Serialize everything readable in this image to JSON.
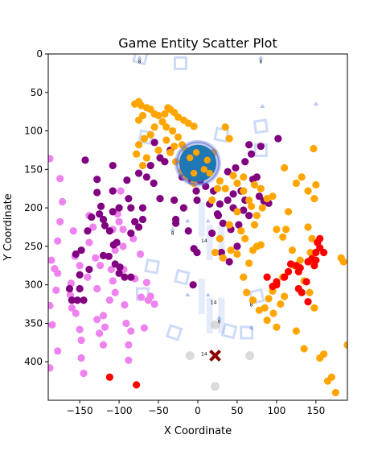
{
  "chart_data": {
    "type": "scatter",
    "title": "Game Entity Scatter Plot",
    "xlabel": "X Coordinate",
    "ylabel": "Y Coordinate",
    "xlim": [
      -190,
      190
    ],
    "ylim": [
      450,
      0
    ],
    "xticks": [
      -150,
      -100,
      -50,
      0,
      50,
      100,
      150
    ],
    "yticks": [
      0,
      50,
      100,
      150,
      200,
      250,
      300,
      350,
      400
    ],
    "grid": false,
    "legend": "none",
    "colors": {
      "violet": "#ee82ee",
      "purple": "#800080",
      "orange": "#ffa500",
      "red": "#ff0000",
      "blue": "#1f77b4",
      "darkred": "#8b0000",
      "gray": "#bbbbbb",
      "wire": "#1f5ae0"
    },
    "series": [
      {
        "color": "violet",
        "points": [
          [
            -188,
            136
          ],
          [
            -175,
            162
          ],
          [
            -172,
            192
          ],
          [
            -175,
            218
          ],
          [
            -178,
            243
          ],
          [
            -186,
            268
          ],
          [
            -182,
            279
          ],
          [
            -178,
            285
          ],
          [
            -180,
            307
          ],
          [
            -188,
            327
          ],
          [
            -185,
            352
          ],
          [
            -178,
            386
          ],
          [
            -188,
            408
          ],
          [
            -158,
            230
          ],
          [
            -156,
            263
          ],
          [
            -161,
            298
          ],
          [
            -162,
            313
          ],
          [
            -155,
            337
          ],
          [
            -150,
            358
          ],
          [
            -148,
            372
          ],
          [
            -145,
            415
          ],
          [
            -148,
            395
          ],
          [
            -138,
            210
          ],
          [
            -133,
            225
          ],
          [
            -130,
            265
          ],
          [
            -128,
            305
          ],
          [
            -128,
            345
          ],
          [
            -125,
            363
          ],
          [
            -120,
            378
          ],
          [
            -118,
            355
          ],
          [
            -112,
            320
          ],
          [
            -108,
            295
          ],
          [
            -105,
            255
          ],
          [
            -108,
            228
          ],
          [
            -102,
            208
          ],
          [
            -98,
            178
          ],
          [
            -95,
            250
          ],
          [
            -94,
            280
          ],
          [
            -93,
            326
          ],
          [
            -91,
            350
          ],
          [
            -88,
            378
          ],
          [
            -88,
            398
          ],
          [
            -85,
            360
          ],
          [
            -82,
            240
          ],
          [
            -80,
            292
          ],
          [
            -73,
            260
          ],
          [
            -72,
            316
          ],
          [
            -68,
            356
          ],
          [
            -65,
            297
          ],
          [
            -63,
            320
          ],
          [
            -60,
            315
          ],
          [
            -55,
            325
          ],
          [
            -100,
            218
          ],
          [
            -110,
            280
          ],
          [
            -120,
            340
          ],
          [
            -140,
            290
          ],
          [
            -160,
            330
          ],
          [
            -150,
            275
          ],
          [
            -95,
            228
          ],
          [
            -105,
            310
          ],
          [
            -124,
            275
          ],
          [
            -138,
            245
          ]
        ]
      },
      {
        "color": "purple",
        "points": [
          [
            -143,
            138
          ],
          [
            -128,
            163
          ],
          [
            -128,
            180
          ],
          [
            -123,
            198
          ],
          [
            -125,
            208
          ],
          [
            -118,
            223
          ],
          [
            -112,
            230
          ],
          [
            -120,
            262
          ],
          [
            -113,
            263
          ],
          [
            -107,
            248
          ],
          [
            -105,
            273
          ],
          [
            -100,
            285
          ],
          [
            -99,
            277
          ],
          [
            -93,
            290
          ],
          [
            -85,
            290
          ],
          [
            -103,
            245
          ],
          [
            -108,
            205
          ],
          [
            -108,
            178
          ],
          [
            -108,
            145
          ],
          [
            -90,
            164
          ],
          [
            -88,
            188
          ],
          [
            -85,
            200
          ],
          [
            -70,
            200
          ],
          [
            -70,
            215
          ],
          [
            -65,
            160
          ],
          [
            -75,
            155
          ],
          [
            -60,
            145
          ],
          [
            -55,
            115
          ],
          [
            -48,
            135
          ],
          [
            -42,
            140
          ],
          [
            -30,
            190
          ],
          [
            -28,
            215
          ],
          [
            -28,
            220
          ],
          [
            -18,
            200
          ],
          [
            -12,
            148
          ],
          [
            -8,
            165
          ],
          [
            -2,
            178
          ],
          [
            -1,
            190
          ],
          [
            -12,
            230
          ],
          [
            -5,
            253
          ],
          [
            -1,
            258
          ],
          [
            -6,
            300
          ],
          [
            3,
            165
          ],
          [
            10,
            172
          ],
          [
            20,
            178
          ],
          [
            25,
            208
          ],
          [
            18,
            233
          ],
          [
            30,
            258
          ],
          [
            40,
            270
          ],
          [
            50,
            250
          ],
          [
            42,
            228
          ],
          [
            26,
            210
          ],
          [
            38,
            190
          ],
          [
            45,
            182
          ],
          [
            38,
            153
          ],
          [
            48,
            148
          ],
          [
            55,
            178
          ],
          [
            60,
            190
          ],
          [
            58,
            203
          ],
          [
            65,
            210
          ],
          [
            70,
            163
          ],
          [
            75,
            160
          ],
          [
            68,
            130
          ],
          [
            65,
            118
          ],
          [
            84,
            191
          ],
          [
            90,
            194
          ],
          [
            78,
            185
          ],
          [
            102,
            110
          ],
          [
            -138,
            280
          ],
          [
            -150,
            305
          ],
          [
            -145,
            320
          ],
          [
            -153,
            320
          ],
          [
            -160,
            320
          ],
          [
            -163,
            305
          ],
          [
            -150,
            287
          ],
          [
            -155,
            260
          ],
          [
            -148,
            255
          ],
          [
            -140,
            230
          ],
          [
            -135,
            212
          ],
          [
            -120,
            215
          ],
          [
            -100,
            200
          ],
          [
            -85,
            233
          ],
          [
            -75,
            225
          ],
          [
            -80,
            218
          ],
          [
            -48,
            188
          ],
          [
            -56,
            168
          ],
          [
            -35,
            125
          ],
          [
            -20,
            160
          ],
          [
            15,
            195
          ],
          [
            28,
            195
          ],
          [
            5,
            148
          ],
          [
            60,
            140
          ],
          [
            80,
            120
          ],
          [
            52,
            222
          ],
          [
            45,
            200
          ],
          [
            32,
            220
          ]
        ]
      },
      {
        "color": "orange",
        "points": [
          [
            -80,
            65
          ],
          [
            -75,
            62
          ],
          [
            -72,
            67
          ],
          [
            -70,
            80
          ],
          [
            -75,
            86
          ],
          [
            -65,
            70
          ],
          [
            -60,
            72
          ],
          [
            -55,
            78
          ],
          [
            -50,
            80
          ],
          [
            -42,
            78
          ],
          [
            -38,
            70
          ],
          [
            -35,
            72
          ],
          [
            -30,
            76
          ],
          [
            -25,
            82
          ],
          [
            -18,
            86
          ],
          [
            -12,
            90
          ],
          [
            -5,
            94
          ],
          [
            -45,
            88
          ],
          [
            -40,
            95
          ],
          [
            -32,
            100
          ],
          [
            -25,
            108
          ],
          [
            -20,
            118
          ],
          [
            -15,
            125
          ],
          [
            -10,
            130
          ],
          [
            -2,
            135
          ],
          [
            -55,
            95
          ],
          [
            -60,
            105
          ],
          [
            -68,
            110
          ],
          [
            -75,
            118
          ],
          [
            -78,
            130
          ],
          [
            -70,
            145
          ],
          [
            -65,
            135
          ],
          [
            -50,
            125
          ],
          [
            -35,
            128
          ],
          [
            -28,
            140
          ],
          [
            -20,
            152
          ],
          [
            -15,
            160
          ],
          [
            -5,
            168
          ],
          [
            -40,
            112
          ],
          [
            -30,
            120
          ],
          [
            10,
            135
          ],
          [
            20,
            128
          ],
          [
            15,
            150
          ],
          [
            8,
            158
          ],
          [
            28,
            165
          ],
          [
            35,
            175
          ],
          [
            45,
            158
          ],
          [
            50,
            168
          ],
          [
            58,
            178
          ],
          [
            65,
            190
          ],
          [
            72,
            170
          ],
          [
            82,
            200
          ],
          [
            88,
            188
          ],
          [
            75,
            210
          ],
          [
            68,
            198
          ],
          [
            50,
            205
          ],
          [
            95,
            185
          ],
          [
            100,
            228
          ],
          [
            108,
            238
          ],
          [
            110,
            148
          ],
          [
            125,
            168
          ],
          [
            132,
            160
          ],
          [
            140,
            178
          ],
          [
            148,
            188
          ],
          [
            147,
            123
          ],
          [
            140,
            225
          ],
          [
            145,
            240
          ],
          [
            143,
            258
          ],
          [
            130,
            268
          ],
          [
            122,
            275
          ],
          [
            115,
            283
          ],
          [
            108,
            290
          ],
          [
            100,
            298
          ],
          [
            95,
            308
          ],
          [
            90,
            318
          ],
          [
            85,
            330
          ],
          [
            96,
            337
          ],
          [
            105,
            325
          ],
          [
            110,
            315
          ],
          [
            72,
            222
          ],
          [
            80,
            248
          ],
          [
            75,
            250
          ],
          [
            65,
            272
          ],
          [
            58,
            290
          ],
          [
            62,
            310
          ],
          [
            70,
            320
          ],
          [
            78,
            333
          ],
          [
            88,
            346
          ],
          [
            100,
            355
          ],
          [
            125,
            360
          ],
          [
            135,
            383
          ],
          [
            155,
            395
          ],
          [
            160,
            390
          ],
          [
            165,
            425
          ],
          [
            170,
            420
          ],
          [
            175,
            440
          ],
          [
            182,
            265
          ],
          [
            185,
            270
          ],
          [
            190,
            378
          ],
          [
            35,
            95
          ],
          [
            40,
            110
          ],
          [
            25,
            175
          ],
          [
            18,
            190
          ],
          [
            28,
            240
          ],
          [
            32,
            265
          ],
          [
            42,
            255
          ],
          [
            22,
            258
          ],
          [
            55,
            230
          ],
          [
            60,
            240
          ],
          [
            70,
            255
          ],
          [
            40,
            222
          ],
          [
            50,
            260
          ],
          [
            115,
            205
          ],
          [
            120,
            255
          ],
          [
            128,
            280
          ],
          [
            135,
            295
          ],
          [
            142,
            310
          ],
          [
            148,
            330
          ],
          [
            150,
            170
          ],
          [
            112,
            228
          ],
          [
            58,
            160
          ],
          [
            80,
            175
          ]
        ]
      },
      {
        "color": "red",
        "points": [
          [
            88,
            290
          ],
          [
            95,
            302
          ],
          [
            100,
            300
          ],
          [
            115,
            283
          ],
          [
            118,
            273
          ],
          [
            125,
            275
          ],
          [
            128,
            283
          ],
          [
            130,
            278
          ],
          [
            138,
            296
          ],
          [
            140,
            270
          ],
          [
            145,
            266
          ],
          [
            148,
            275
          ],
          [
            150,
            258
          ],
          [
            152,
            245
          ],
          [
            155,
            252
          ],
          [
            155,
            240
          ],
          [
            160,
            258
          ],
          [
            150,
            268
          ],
          [
            140,
            322
          ],
          [
            128,
            305
          ],
          [
            132,
            310
          ],
          [
            110,
            290
          ],
          [
            100,
            296
          ],
          [
            -112,
            420
          ],
          [
            -78,
            430
          ]
        ]
      },
      {
        "color": "gray",
        "points": [
          [
            -10,
            392
          ],
          [
            22,
            352
          ],
          [
            66,
            392
          ],
          [
            22,
            432
          ]
        ]
      }
    ],
    "player": {
      "x": 0,
      "y": 142
    },
    "target": {
      "x": 22,
      "y": 392
    },
    "wireframe_labels": [
      "8",
      "14"
    ]
  }
}
